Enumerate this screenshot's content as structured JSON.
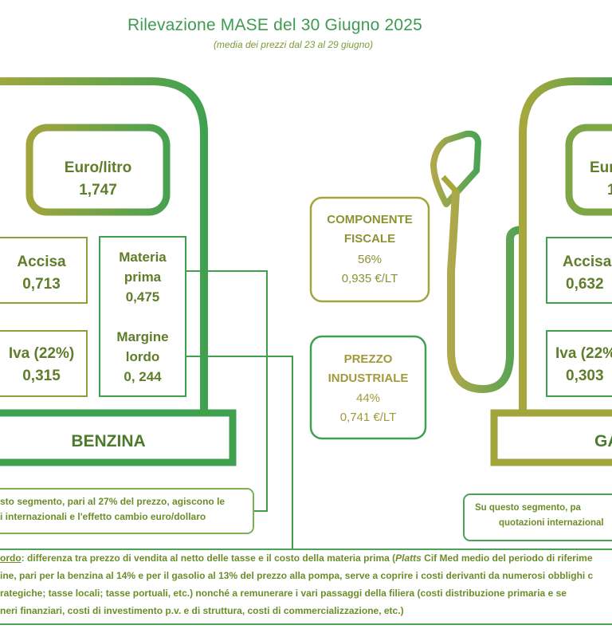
{
  "header": {
    "title": "Rilevazione MASE del 30 Giugno 2025",
    "subtitle": "(media dei prezzi dal 23 al 29 giugno)"
  },
  "benzina": {
    "euro_litro_label": "Euro/litro",
    "euro_litro_value": "1,747",
    "accisa_label": "Accisa",
    "accisa_value": "0,713",
    "iva_label": "Iva (22%)",
    "iva_value": "0,315",
    "materia_label_1": "Materia",
    "materia_label_2": "prima",
    "materia_value": "0,475",
    "margine_label_1": "Margine",
    "margine_label_2": "lordo",
    "margine_value": "0, 244",
    "name": "BENZINA",
    "note_line_1": "sto segmento, pari al 27% del prezzo, agiscono le",
    "note_line_2": "i internazionali e l'effetto cambio euro/dollaro"
  },
  "gasolio": {
    "euro_litro_label": "Eur",
    "euro_litro_value": "1",
    "accisa_label": "Accisa",
    "accisa_value": "0,632",
    "iva_label": "Iva (22%",
    "iva_value": "0,303",
    "name": "GA",
    "note_line_1": "Su questo segmento, pa",
    "note_line_2": "quotazioni internazional"
  },
  "componente_fiscale": {
    "line_1": "COMPONENTE",
    "line_2": "FISCALE",
    "percent": "56%",
    "value": "0,935 €/LT"
  },
  "prezzo_industriale": {
    "line_1": "PREZZO",
    "line_2": "INDUSTRIALE",
    "percent": "44%",
    "value": "0,741 €/LT"
  },
  "footnote": {
    "term": "ordo",
    "line_1_a": ": differenza tra prezzo di vendita al netto delle tasse e il costo della materia prima (",
    "line_1_platts": "Platts",
    "line_1_b": " Cif Med medio del periodo di riferime",
    "line_2": "ine, pari per la benzina al 14% e per il gasolio al 13% del prezzo alla pompa, serve a coprire i costi derivanti da numerosi obblighi c",
    "line_3": "rategiche; tasse locali; tasse portuali, etc.) nonché a remunerare i vari passaggi della filiera (costi distribuzione primaria e se",
    "line_4": "neri finanziari, costi di investimento p.v. e di struttura, costi di commercializzazione, etc.)"
  }
}
